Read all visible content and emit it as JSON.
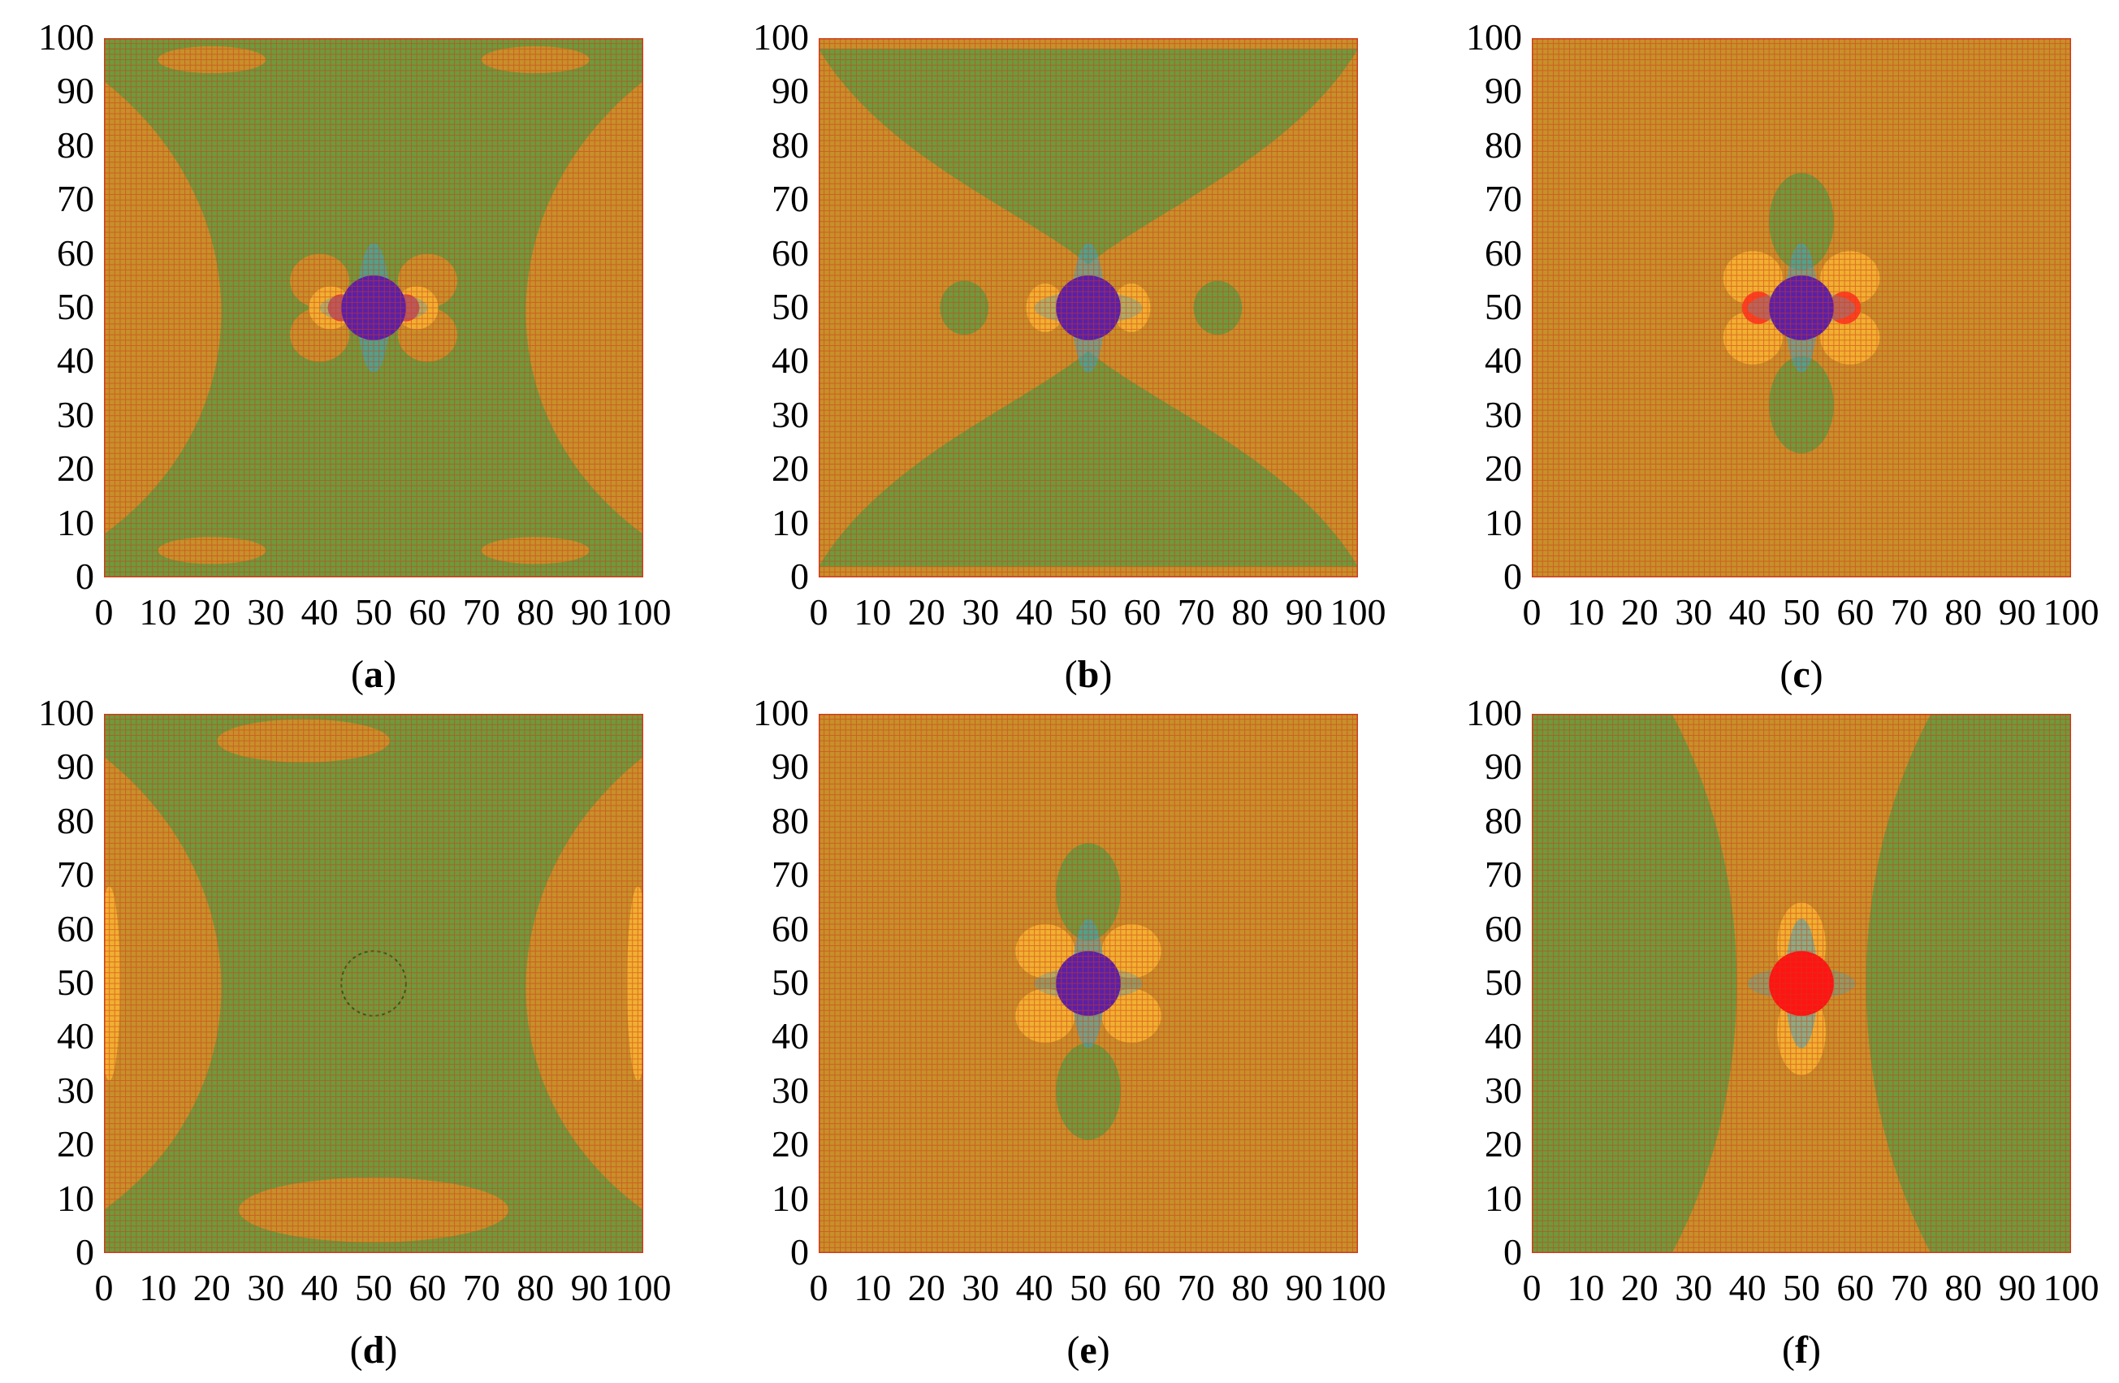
{
  "panels": [
    {
      "label": "a",
      "caption_open": "(",
      "caption_close": ")",
      "variant": "a"
    },
    {
      "label": "b",
      "caption_open": "(",
      "caption_close": ")",
      "variant": "b"
    },
    {
      "label": "c",
      "caption_open": "(",
      "caption_close": ")",
      "variant": "c"
    },
    {
      "label": "d",
      "caption_open": "(",
      "caption_close": ")",
      "variant": "d"
    },
    {
      "label": "e",
      "caption_open": "(",
      "caption_close": ")",
      "variant": "e"
    },
    {
      "label": "f",
      "caption_open": "(",
      "caption_close": ")",
      "variant": "f"
    }
  ],
  "axis": {
    "x_ticks": [
      "0",
      "10",
      "20",
      "30",
      "40",
      "50",
      "60",
      "70",
      "80",
      "90",
      "100"
    ],
    "y_ticks": [
      "0",
      "10",
      "20",
      "30",
      "40",
      "50",
      "60",
      "70",
      "80",
      "90",
      "100"
    ],
    "range": [
      0,
      100
    ]
  },
  "colors": {
    "field_green": "#6f9a3c",
    "field_dark_green": "#5a8a33",
    "field_orange": "#c7902a",
    "field_bright": "#f0b030",
    "hole_blue": "#5a20a8",
    "hole_red": "#ff1414",
    "grid_red": "#d23a1a",
    "halo_cyan": "#3aa8c8"
  },
  "hole": {
    "center": [
      50,
      50
    ],
    "radius": 6
  }
}
